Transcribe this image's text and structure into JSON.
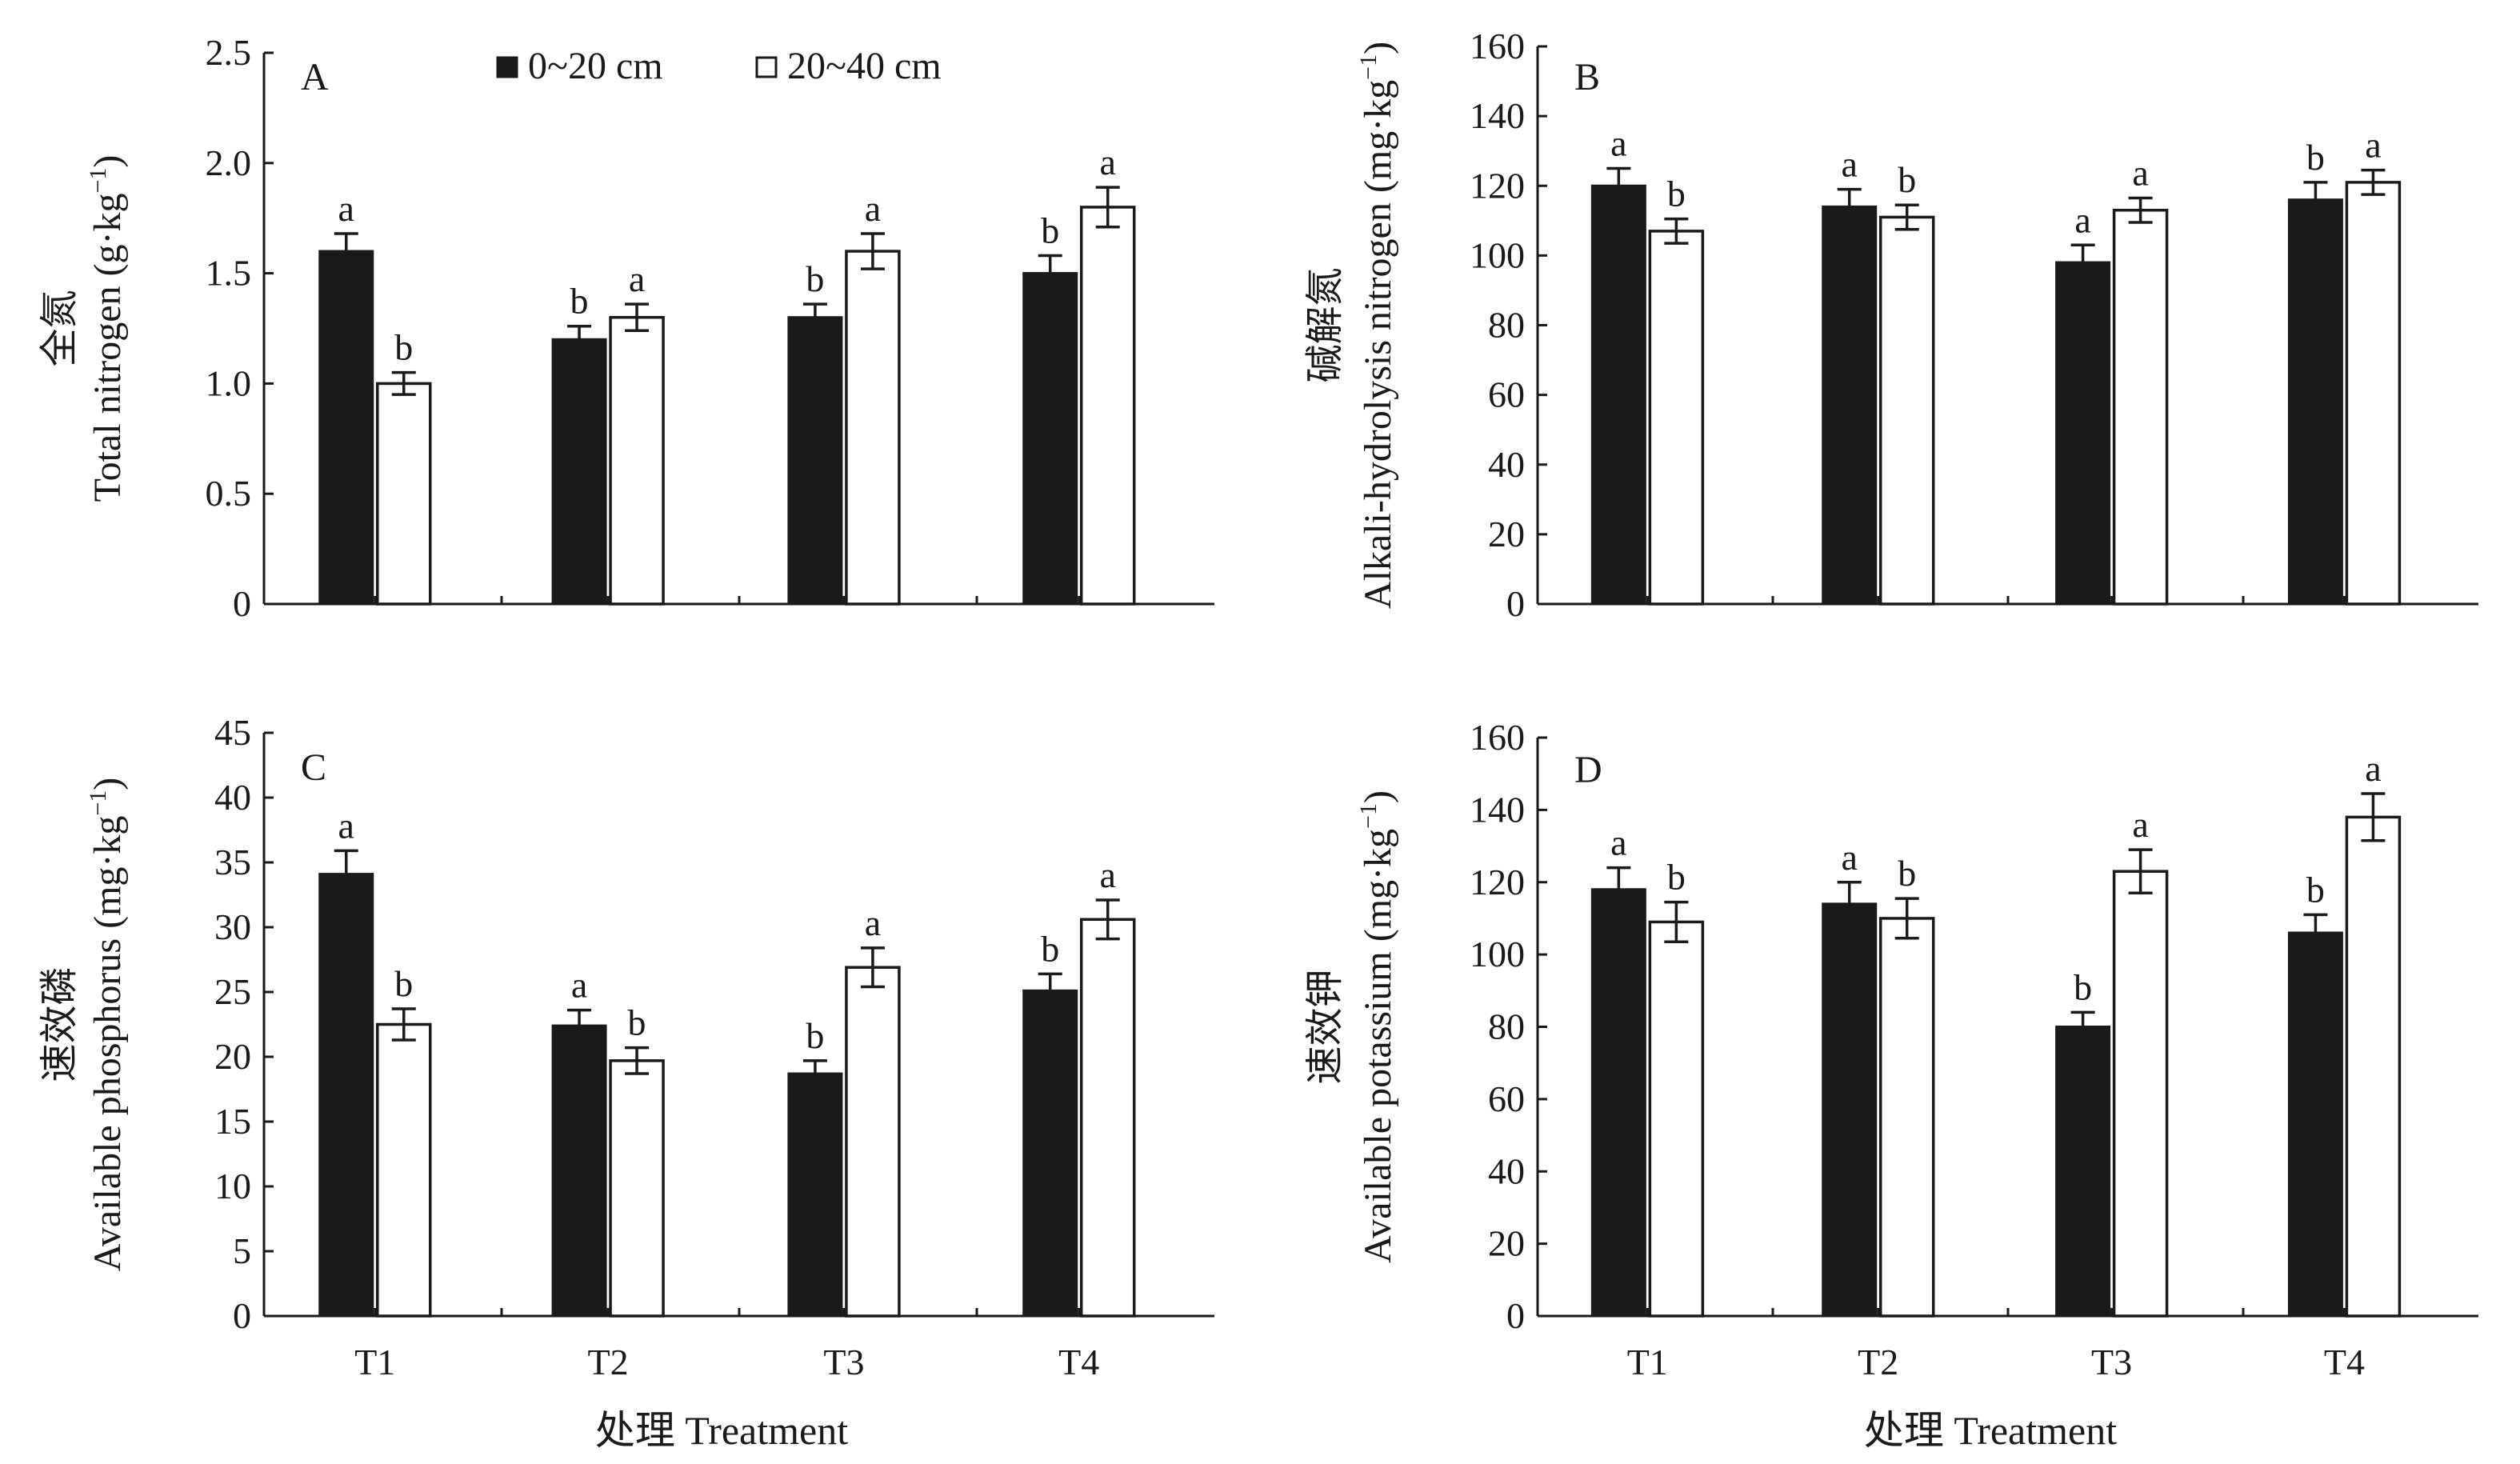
{
  "legend": [
    {
      "label": "0~20 cm",
      "color": "#1a1a1a",
      "fill": "solid"
    },
    {
      "label": "20~40 cm",
      "color": "#ffffff",
      "fill": "hollow"
    }
  ],
  "colors": {
    "dark_bar": "#1a1a1a",
    "light_bar": "#ffffff",
    "axis": "#1a1a1a"
  },
  "chart_data": [
    {
      "panel": "A",
      "type": "bar",
      "categories": [
        "T1",
        "T2",
        "T3",
        "T4"
      ],
      "show_x_tick_labels": false,
      "xlabel": "",
      "ylabel_cn": "全氮",
      "ylabel_en": "Total nitrogen (g·kg",
      "ylabel_sup": "−1",
      "ylim": [
        0,
        2.5
      ],
      "yticks": [
        "0",
        "0.5",
        "1.0",
        "1.5",
        "2.0",
        "2.5"
      ],
      "grid": false,
      "legend_position": "top",
      "series": [
        {
          "name": "0~20 cm",
          "values": [
            1.6,
            1.2,
            1.3,
            1.5
          ],
          "errors": [
            0.08,
            0.06,
            0.06,
            0.08
          ],
          "letters": [
            "a",
            "b",
            "b",
            "b"
          ]
        },
        {
          "name": "20~40 cm",
          "values": [
            1.0,
            1.3,
            1.6,
            1.8
          ],
          "errors": [
            0.05,
            0.06,
            0.08,
            0.09
          ],
          "letters": [
            "b",
            "a",
            "a",
            "a"
          ]
        }
      ]
    },
    {
      "panel": "B",
      "type": "bar",
      "categories": [
        "T1",
        "T2",
        "T3",
        "T4"
      ],
      "show_x_tick_labels": false,
      "xlabel": "",
      "ylabel_cn": "碱解氮",
      "ylabel_en": "Alkali-hydrolysis nitrogen (mg·kg",
      "ylabel_sup": "−1",
      "ylim": [
        0,
        160
      ],
      "yticks": [
        "0",
        "20",
        "40",
        "60",
        "80",
        "100",
        "120",
        "140",
        "160"
      ],
      "grid": false,
      "series": [
        {
          "name": "0~20 cm",
          "values": [
            120,
            114,
            98,
            116
          ],
          "errors": [
            5,
            5,
            5,
            5
          ],
          "letters": [
            "a",
            "a",
            "a",
            "b"
          ]
        },
        {
          "name": "20~40 cm",
          "values": [
            107,
            111,
            113,
            121
          ],
          "errors": [
            3.5,
            3.5,
            3.5,
            3.5
          ],
          "letters": [
            "b",
            "b",
            "a",
            "a"
          ]
        }
      ]
    },
    {
      "panel": "C",
      "type": "bar",
      "categories": [
        "T1",
        "T2",
        "T3",
        "T4"
      ],
      "show_x_tick_labels": true,
      "xlabel": "处理 Treatment",
      "ylabel_cn": "速效磷",
      "ylabel_en": "Available phosphorus (mg·kg",
      "ylabel_sup": "−1",
      "ylim": [
        0,
        45
      ],
      "yticks": [
        "0",
        "5",
        "10",
        "15",
        "20",
        "25",
        "30",
        "35",
        "40",
        "45"
      ],
      "grid": false,
      "series": [
        {
          "name": "0~20 cm",
          "values": [
            34.1,
            22.4,
            18.7,
            25.1
          ],
          "errors": [
            1.8,
            1.2,
            1.0,
            1.3
          ],
          "letters": [
            "a",
            "a",
            "b",
            "b"
          ]
        },
        {
          "name": "20~40 cm",
          "values": [
            22.5,
            19.7,
            26.9,
            30.6
          ],
          "errors": [
            1.2,
            1.0,
            1.5,
            1.5
          ],
          "letters": [
            "b",
            "b",
            "a",
            "a"
          ]
        }
      ]
    },
    {
      "panel": "D",
      "type": "bar",
      "categories": [
        "T1",
        "T2",
        "T3",
        "T4"
      ],
      "show_x_tick_labels": true,
      "xlabel": "处理 Treatment",
      "ylabel_cn": "速效钾",
      "ylabel_en": "Available potassium (mg·kg",
      "ylabel_sup": "−1",
      "ylim": [
        0,
        160
      ],
      "yticks": [
        "0",
        "20",
        "40",
        "60",
        "80",
        "100",
        "120",
        "140",
        "160"
      ],
      "grid": false,
      "series": [
        {
          "name": "0~20 cm",
          "values": [
            118,
            114,
            80,
            106
          ],
          "errors": [
            6,
            6,
            4,
            5
          ],
          "letters": [
            "a",
            "a",
            "b",
            "b"
          ]
        },
        {
          "name": "20~40 cm",
          "values": [
            109,
            110,
            123,
            138
          ],
          "errors": [
            5.5,
            5.5,
            6,
            6.5
          ],
          "letters": [
            "b",
            "b",
            "a",
            "a"
          ]
        }
      ]
    }
  ]
}
